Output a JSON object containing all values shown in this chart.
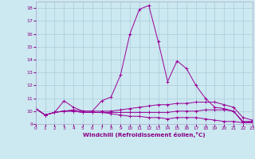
{
  "title": "",
  "xlabel": "Windchill (Refroidissement éolien,°C)",
  "ylabel": "",
  "background_color": "#cce8f0",
  "grid_color": "#aaccdd",
  "line_color": "#990099",
  "xlim": [
    0,
    23
  ],
  "ylim": [
    9,
    18.5
  ],
  "x_ticks": [
    0,
    1,
    2,
    3,
    4,
    5,
    6,
    7,
    8,
    9,
    10,
    11,
    12,
    13,
    14,
    15,
    16,
    17,
    18,
    19,
    20,
    21,
    22,
    23
  ],
  "y_ticks": [
    9,
    10,
    11,
    12,
    13,
    14,
    15,
    16,
    17,
    18
  ],
  "series": [
    {
      "x": [
        0,
        1,
        2,
        3,
        4,
        5,
        6,
        7,
        8,
        9,
        10,
        11,
        12,
        13,
        14,
        15,
        16,
        17,
        18,
        19,
        20,
        21,
        22,
        23
      ],
      "y": [
        10.2,
        9.7,
        9.9,
        10.8,
        10.3,
        10.0,
        10.0,
        10.8,
        11.1,
        12.8,
        16.0,
        17.9,
        18.2,
        15.4,
        12.3,
        13.9,
        13.3,
        12.0,
        11.0,
        10.3,
        10.2,
        10.0,
        9.1,
        9.2
      ]
    },
    {
      "x": [
        0,
        1,
        2,
        3,
        4,
        5,
        6,
        7,
        8,
        9,
        10,
        11,
        12,
        13,
        14,
        15,
        16,
        17,
        18,
        19,
        20,
        21,
        22,
        23
      ],
      "y": [
        10.2,
        9.7,
        9.9,
        10.0,
        10.1,
        10.0,
        10.0,
        10.0,
        10.0,
        10.1,
        10.2,
        10.3,
        10.4,
        10.5,
        10.5,
        10.6,
        10.6,
        10.7,
        10.7,
        10.7,
        10.5,
        10.3,
        9.5,
        9.3
      ]
    },
    {
      "x": [
        0,
        1,
        2,
        3,
        4,
        5,
        6,
        7,
        8,
        9,
        10,
        11,
        12,
        13,
        14,
        15,
        16,
        17,
        18,
        19,
        20,
        21,
        22,
        23
      ],
      "y": [
        10.2,
        9.7,
        9.9,
        10.0,
        10.0,
        9.9,
        9.9,
        9.9,
        9.9,
        9.9,
        9.9,
        9.9,
        9.9,
        9.9,
        9.9,
        10.0,
        10.0,
        10.0,
        10.1,
        10.1,
        10.1,
        10.0,
        9.2,
        9.2
      ]
    },
    {
      "x": [
        0,
        1,
        2,
        3,
        4,
        5,
        6,
        7,
        8,
        9,
        10,
        11,
        12,
        13,
        14,
        15,
        16,
        17,
        18,
        19,
        20,
        21,
        22,
        23
      ],
      "y": [
        10.2,
        9.7,
        9.9,
        10.0,
        10.0,
        9.9,
        9.9,
        9.9,
        9.8,
        9.7,
        9.6,
        9.6,
        9.5,
        9.5,
        9.4,
        9.5,
        9.5,
        9.5,
        9.4,
        9.3,
        9.2,
        9.2,
        9.1,
        9.1
      ]
    }
  ]
}
